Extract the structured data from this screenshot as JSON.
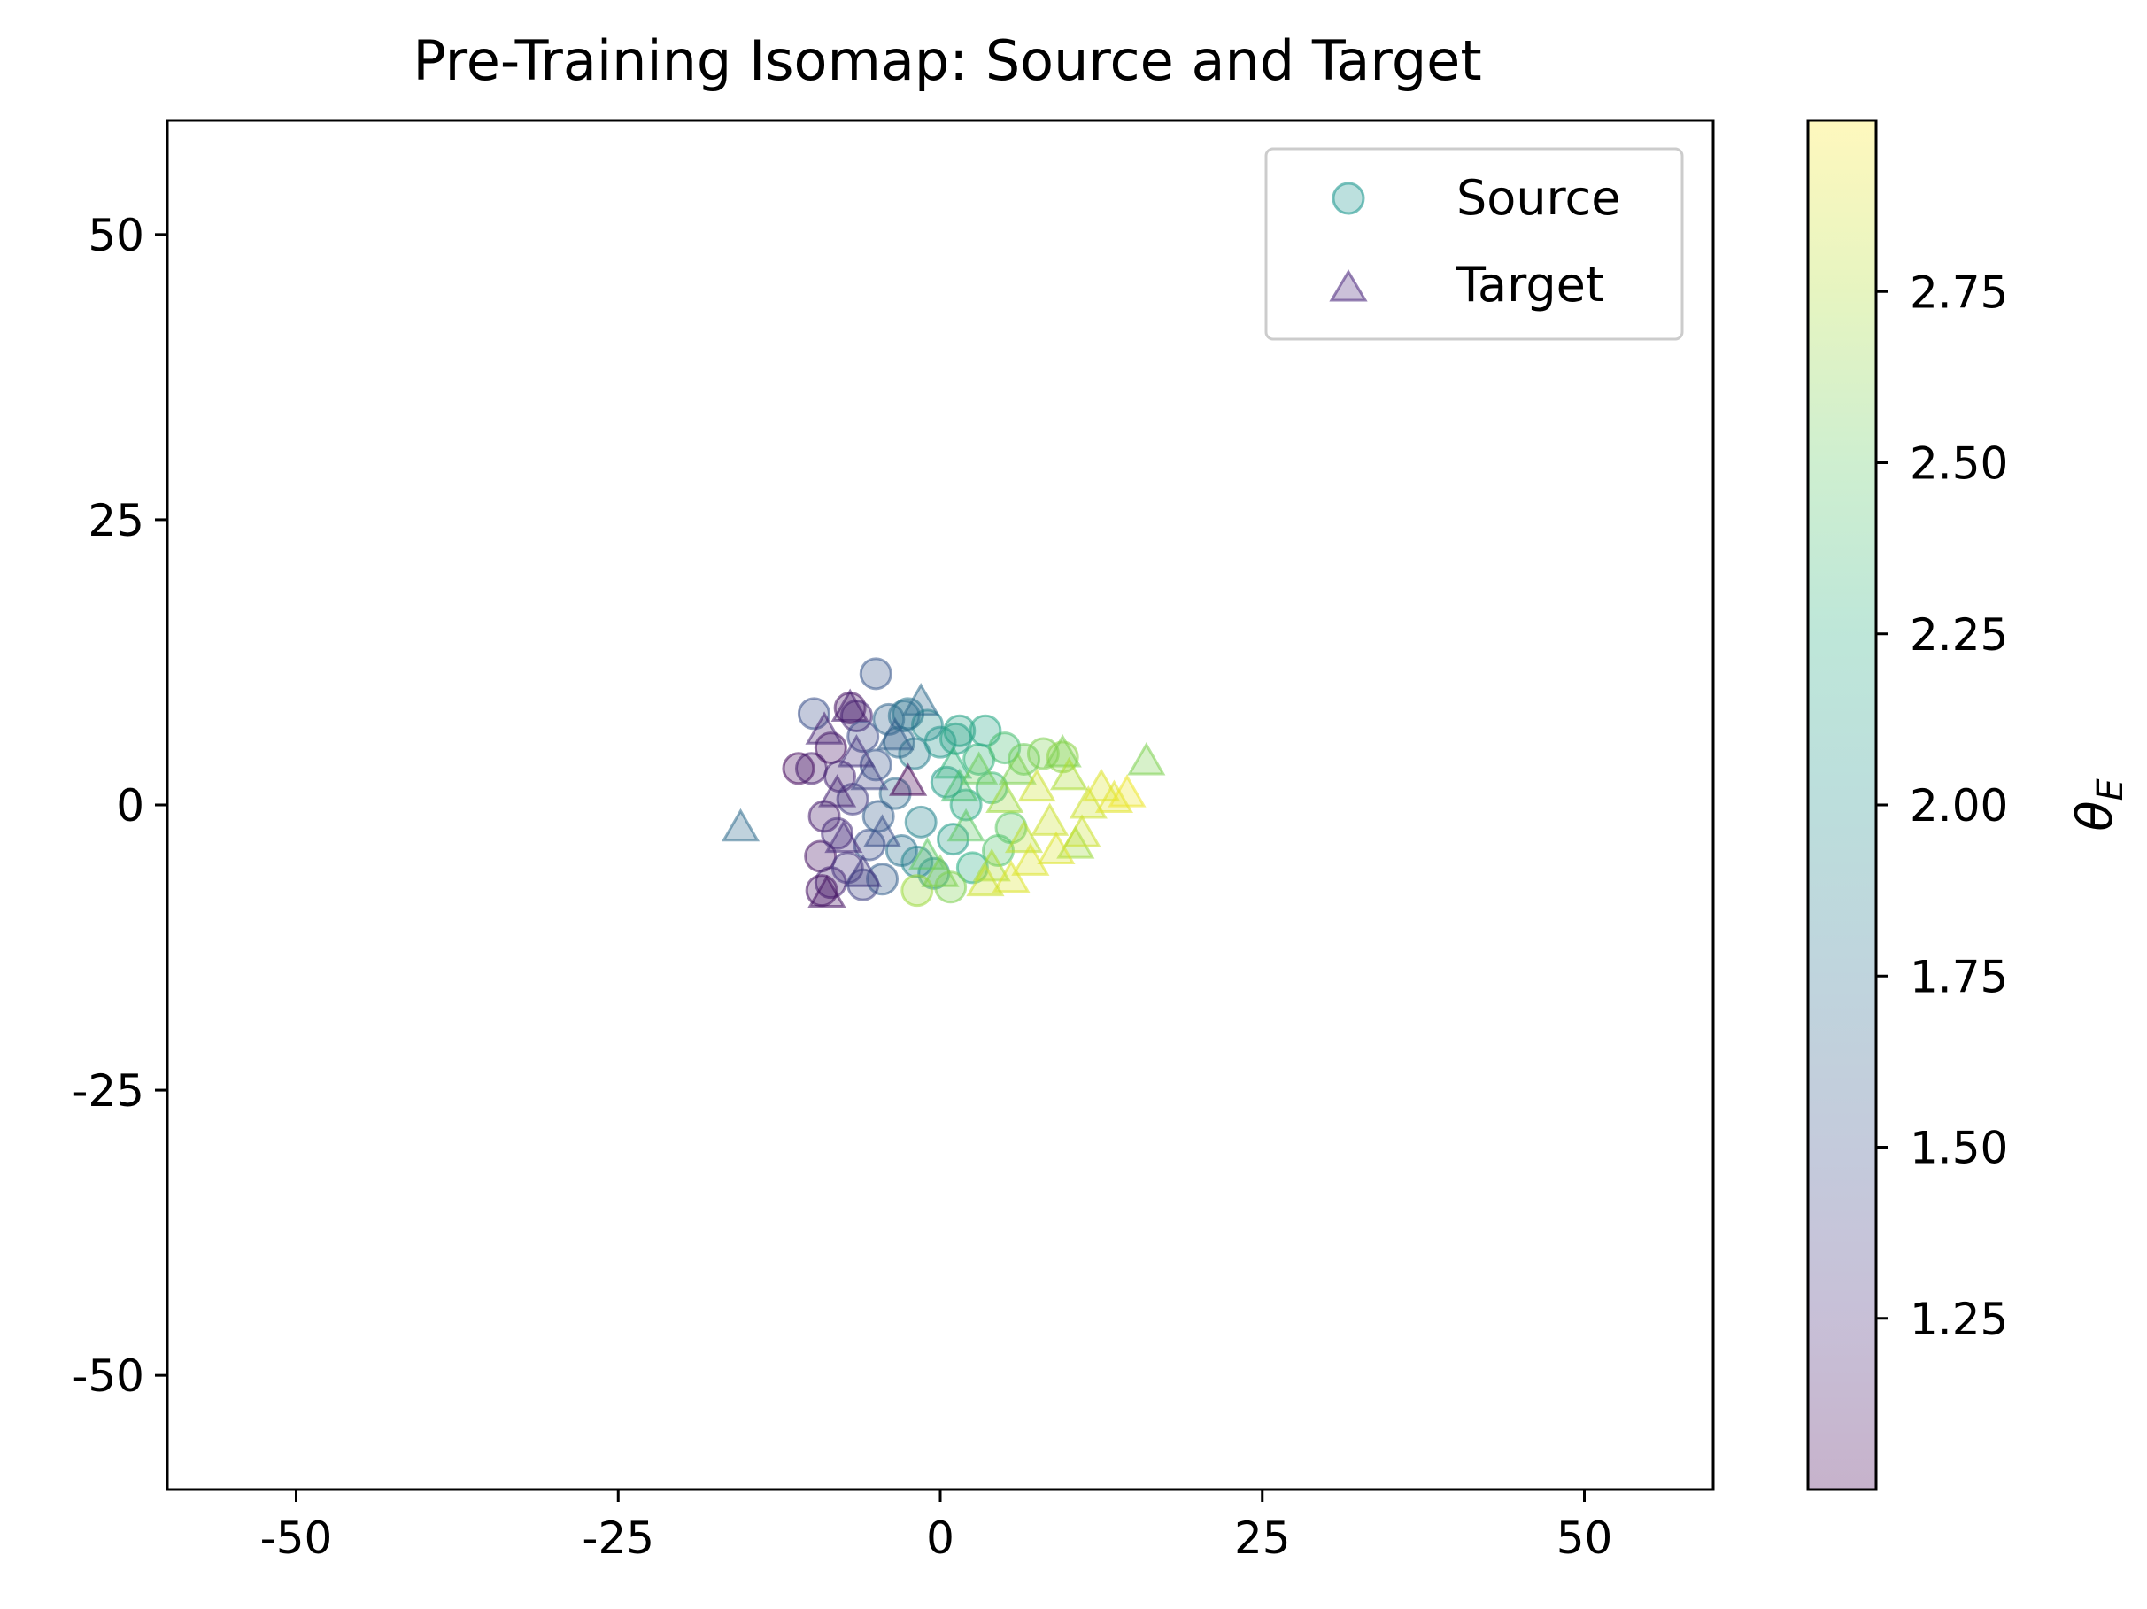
{
  "chart_data": {
    "type": "scatter",
    "title": "Pre-Training Isomap: Source and Target",
    "xlabel": "",
    "ylabel": "",
    "xlim": [
      -60,
      60
    ],
    "ylim": [
      -60,
      60
    ],
    "xticks": [
      -50,
      -25,
      0,
      25,
      50
    ],
    "xtick_labels": [
      "-50",
      "-25",
      "0",
      "25",
      "50"
    ],
    "yticks": [
      50,
      25,
      0,
      -25,
      -50
    ],
    "ytick_labels": [
      "50",
      "25",
      "0",
      "-25",
      "-50"
    ],
    "grid": false,
    "legend_position": "top-right",
    "colormap": "viridis",
    "colorbar": {
      "label": "θ_E",
      "label_main": "θ",
      "label_sub": "E",
      "range": [
        1.0,
        3.0
      ],
      "ticks": [
        2.75,
        2.5,
        2.25,
        2.0,
        1.75,
        1.5,
        1.25
      ],
      "tick_labels": [
        "2.75",
        "2.50",
        "2.25",
        "2.00",
        "1.75",
        "1.50",
        "1.25"
      ]
    },
    "marker_opacity": 0.3,
    "series": [
      {
        "name": "Source",
        "marker": "circle",
        "legend_color": "#3fa7a0",
        "points": [
          {
            "x": -5.0,
            "y": 11.5,
            "c": 1.55
          },
          {
            "x": -9.8,
            "y": 8.0,
            "c": 1.5
          },
          {
            "x": -11.0,
            "y": 3.2,
            "c": 1.05
          },
          {
            "x": -10.0,
            "y": 3.2,
            "c": 1.15
          },
          {
            "x": -7.0,
            "y": 8.5,
            "c": 1.1
          },
          {
            "x": -6.5,
            "y": 7.8,
            "c": 1.2
          },
          {
            "x": -8.5,
            "y": 5.0,
            "c": 1.1
          },
          {
            "x": -9.0,
            "y": -1.0,
            "c": 1.15
          },
          {
            "x": -9.3,
            "y": -4.5,
            "c": 1.1
          },
          {
            "x": -8.5,
            "y": -6.8,
            "c": 1.2
          },
          {
            "x": -9.2,
            "y": -7.5,
            "c": 1.1
          },
          {
            "x": -7.8,
            "y": 2.5,
            "c": 1.2
          },
          {
            "x": -8.0,
            "y": -2.5,
            "c": 1.25
          },
          {
            "x": -7.2,
            "y": -5.5,
            "c": 1.3
          },
          {
            "x": -6.8,
            "y": 0.5,
            "c": 1.35
          },
          {
            "x": -6.0,
            "y": 6.0,
            "c": 1.45
          },
          {
            "x": -5.5,
            "y": -3.5,
            "c": 1.5
          },
          {
            "x": -5.0,
            "y": 3.5,
            "c": 1.55
          },
          {
            "x": -4.5,
            "y": -6.5,
            "c": 1.6
          },
          {
            "x": -4.0,
            "y": 7.5,
            "c": 1.65
          },
          {
            "x": -3.5,
            "y": 1.0,
            "c": 1.7
          },
          {
            "x": -3.0,
            "y": -4.0,
            "c": 1.75
          },
          {
            "x": -2.5,
            "y": 8.0,
            "c": 1.8
          },
          {
            "x": -2.0,
            "y": 4.5,
            "c": 1.85
          },
          {
            "x": -1.5,
            "y": -1.5,
            "c": 1.9
          },
          {
            "x": -1.0,
            "y": 7.0,
            "c": 1.95
          },
          {
            "x": -0.5,
            "y": -6.0,
            "c": 2.0
          },
          {
            "x": 0.0,
            "y": 5.5,
            "c": 2.05
          },
          {
            "x": 0.5,
            "y": 2.0,
            "c": 2.1
          },
          {
            "x": 1.0,
            "y": -3.0,
            "c": 2.1
          },
          {
            "x": 1.5,
            "y": 6.5,
            "c": 2.15
          },
          {
            "x": 2.0,
            "y": 0.0,
            "c": 2.2
          },
          {
            "x": 2.5,
            "y": -5.5,
            "c": 2.25
          },
          {
            "x": 3.0,
            "y": 4.0,
            "c": 2.3
          },
          {
            "x": 3.5,
            "y": 6.5,
            "c": 2.2
          },
          {
            "x": 4.0,
            "y": 1.5,
            "c": 2.35
          },
          {
            "x": 5.0,
            "y": 5.0,
            "c": 2.4
          },
          {
            "x": 5.5,
            "y": -2.0,
            "c": 2.5
          },
          {
            "x": 6.5,
            "y": 4.0,
            "c": 2.55
          },
          {
            "x": 8.0,
            "y": 4.5,
            "c": 2.6
          },
          {
            "x": 9.5,
            "y": 4.2,
            "c": 2.65
          },
          {
            "x": -6.0,
            "y": -7.0,
            "c": 1.4
          },
          {
            "x": -4.8,
            "y": -1.0,
            "c": 1.6
          },
          {
            "x": -3.2,
            "y": 5.5,
            "c": 1.7
          },
          {
            "x": -1.8,
            "y": -5.0,
            "c": 1.9
          },
          {
            "x": -1.8,
            "y": -7.5,
            "c": 2.7
          },
          {
            "x": 0.8,
            "y": -7.2,
            "c": 2.6
          },
          {
            "x": -2.8,
            "y": 7.8,
            "c": 1.75
          },
          {
            "x": 1.2,
            "y": 5.8,
            "c": 2.15
          },
          {
            "x": 4.5,
            "y": -4.0,
            "c": 2.45
          }
        ]
      },
      {
        "name": "Target",
        "marker": "triangle",
        "legend_color": "#6a4c93",
        "points": [
          {
            "x": -15.5,
            "y": -2.0,
            "c": 1.7
          },
          {
            "x": -9.0,
            "y": 6.5,
            "c": 1.2
          },
          {
            "x": -7.0,
            "y": 8.5,
            "c": 1.15
          },
          {
            "x": -2.5,
            "y": 2.0,
            "c": 1.0
          },
          {
            "x": -8.8,
            "y": -7.8,
            "c": 1.1
          },
          {
            "x": -8.0,
            "y": 1.0,
            "c": 1.2
          },
          {
            "x": -7.5,
            "y": -3.0,
            "c": 1.25
          },
          {
            "x": -6.5,
            "y": 4.5,
            "c": 1.3
          },
          {
            "x": -6.0,
            "y": -6.0,
            "c": 1.35
          },
          {
            "x": -5.5,
            "y": 2.5,
            "c": 1.4
          },
          {
            "x": -4.5,
            "y": -2.5,
            "c": 1.5
          },
          {
            "x": -3.5,
            "y": 6.0,
            "c": 1.6
          },
          {
            "x": -1.5,
            "y": 9.0,
            "c": 1.7
          },
          {
            "x": -1.0,
            "y": -4.5,
            "c": 2.5
          },
          {
            "x": 0.0,
            "y": -6.0,
            "c": 2.6
          },
          {
            "x": 1.0,
            "y": 3.5,
            "c": 2.3
          },
          {
            "x": 2.0,
            "y": -2.0,
            "c": 2.5
          },
          {
            "x": 3.0,
            "y": 3.0,
            "c": 2.55
          },
          {
            "x": 4.0,
            "y": -5.5,
            "c": 2.75
          },
          {
            "x": 5.0,
            "y": 0.5,
            "c": 2.7
          },
          {
            "x": 6.0,
            "y": 3.0,
            "c": 2.6
          },
          {
            "x": 6.5,
            "y": -3.0,
            "c": 2.8
          },
          {
            "x": 7.5,
            "y": 1.5,
            "c": 2.85
          },
          {
            "x": 8.5,
            "y": -1.5,
            "c": 2.85
          },
          {
            "x": 9.5,
            "y": 4.5,
            "c": 2.6
          },
          {
            "x": 10.0,
            "y": 2.5,
            "c": 2.75
          },
          {
            "x": 10.5,
            "y": -3.5,
            "c": 2.7
          },
          {
            "x": 11.5,
            "y": 0.0,
            "c": 2.85
          },
          {
            "x": 12.5,
            "y": 1.5,
            "c": 2.9
          },
          {
            "x": 13.5,
            "y": 0.5,
            "c": 2.92
          },
          {
            "x": 14.5,
            "y": 1.0,
            "c": 2.95
          },
          {
            "x": 16.0,
            "y": 3.8,
            "c": 2.6
          },
          {
            "x": 9.0,
            "y": -4.0,
            "c": 2.9
          },
          {
            "x": 5.5,
            "y": -6.5,
            "c": 2.9
          },
          {
            "x": 3.5,
            "y": -6.8,
            "c": 2.85
          },
          {
            "x": 11.0,
            "y": -2.5,
            "c": 2.85
          },
          {
            "x": 1.5,
            "y": 1.5,
            "c": 2.4
          },
          {
            "x": 7.0,
            "y": -5.0,
            "c": 2.9
          }
        ]
      }
    ]
  }
}
